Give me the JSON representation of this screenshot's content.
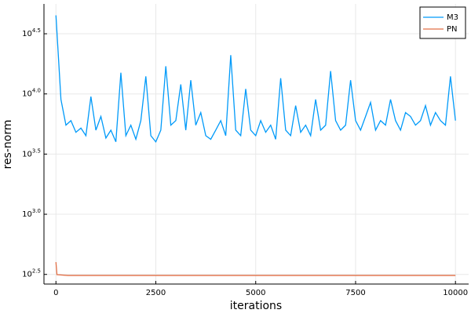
{
  "chart_data": {
    "type": "line",
    "x_label": "iterations",
    "y_label": "res-norm",
    "log_y": true,
    "grid": true,
    "legend": "top-right",
    "xlim": [
      -300,
      10330
    ],
    "xticks": [
      0,
      2500,
      5000,
      7500,
      10000
    ],
    "ylim": [
      263,
      55976
    ],
    "yticks": [
      {
        "value": 316.23,
        "label": "10^2.5"
      },
      {
        "value": 1000,
        "label": "10^3.0"
      },
      {
        "value": 3162.28,
        "label": "10^3.5"
      },
      {
        "value": 10000,
        "label": "10^4.0"
      },
      {
        "value": 31622.78,
        "label": "10^4.5"
      }
    ],
    "series": [
      {
        "name": "M3",
        "color": "#009af9",
        "x": [
          0,
          125,
          250,
          375,
          500,
          625,
          750,
          875,
          1000,
          1125,
          1250,
          1375,
          1500,
          1625,
          1750,
          1875,
          2000,
          2125,
          2250,
          2375,
          2500,
          2625,
          2750,
          2875,
          3000,
          3125,
          3250,
          3375,
          3500,
          3625,
          3750,
          3875,
          4000,
          4125,
          4250,
          4375,
          4500,
          4625,
          4750,
          4875,
          5000,
          5125,
          5250,
          5375,
          5500,
          5625,
          5750,
          5875,
          6000,
          6125,
          6250,
          6375,
          6500,
          6625,
          6750,
          6875,
          7000,
          7125,
          7250,
          7375,
          7500,
          7625,
          7750,
          7875,
          8000,
          8125,
          8250,
          8375,
          8500,
          8625,
          8750,
          8875,
          9000,
          9125,
          9250,
          9375,
          9500,
          9625,
          9750,
          9875,
          10000
        ],
        "values": [
          45000,
          9000,
          5500,
          6000,
          4800,
          5200,
          4500,
          9500,
          5000,
          6500,
          4300,
          5000,
          4000,
          15000,
          4500,
          5500,
          4200,
          6000,
          14000,
          4500,
          4000,
          5000,
          17000,
          5500,
          6000,
          12000,
          5000,
          13000,
          5500,
          7000,
          4500,
          4200,
          5000,
          6000,
          4500,
          21000,
          5000,
          4500,
          11000,
          5000,
          4500,
          6000,
          4800,
          5500,
          4200,
          13500,
          5000,
          4500,
          8000,
          4800,
          5500,
          4500,
          9000,
          5000,
          5500,
          15500,
          6000,
          5000,
          5500,
          13000,
          6000,
          5000,
          6500,
          8500,
          5000,
          6000,
          5500,
          9000,
          6000,
          5000,
          7000,
          6500,
          5500,
          6000,
          8000,
          5500,
          7000,
          6000,
          5500,
          14000,
          6000
        ]
      },
      {
        "name": "PN",
        "color": "#e26f46",
        "x": [
          0,
          25,
          300,
          10000
        ],
        "values": [
          400,
          315,
          310,
          310
        ]
      }
    ]
  }
}
